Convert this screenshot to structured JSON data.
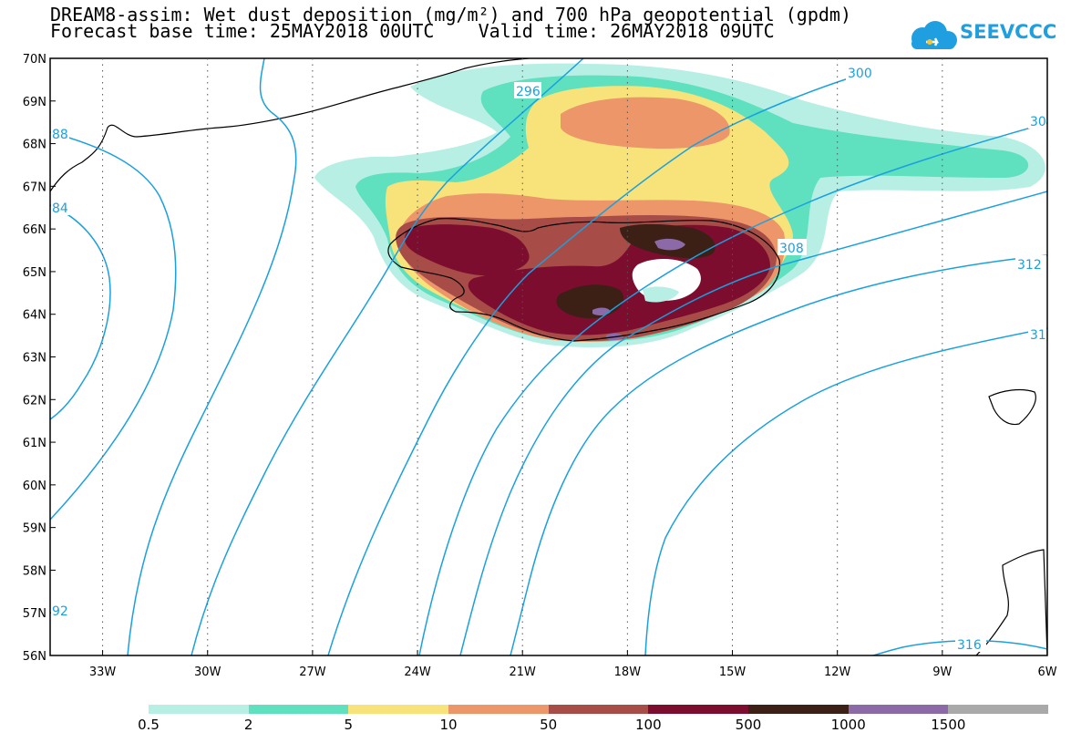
{
  "title": {
    "line1": "DREAM8-assim: Wet dust deposition (mg/m²) and 700 hPa geopotential (gpdm)",
    "line2": "Forecast base time: 25MAY2018 00UTC    Valid time: 26MAY2018 09UTC"
  },
  "logo": {
    "text": "SEEVCCC",
    "icon": "cloud-icon",
    "color": "#1f9fe0"
  },
  "map": {
    "projection": "lat-lon",
    "lon_range": [
      -34.5,
      -6
    ],
    "lat_range": [
      56,
      70
    ],
    "lat_labels": [
      "70N",
      "69N",
      "68N",
      "67N",
      "66N",
      "65N",
      "64N",
      "63N",
      "62N",
      "61N",
      "60N",
      "59N",
      "58N",
      "57N",
      "56N"
    ],
    "lon_labels": [
      "33W",
      "30W",
      "27W",
      "24W",
      "21W",
      "18W",
      "15W",
      "12W",
      "9W",
      "6W"
    ],
    "contour_labels": [
      "296",
      "300",
      "30",
      "88",
      "84",
      "308",
      "312",
      "31",
      "92",
      "316"
    ],
    "contour_color": "#1aa0e0"
  },
  "legend": {
    "colors": [
      "#b8efe4",
      "#5fe0be",
      "#f7e37a",
      "#ec9669",
      "#a84c48",
      "#7d0d2f",
      "#3c2016",
      "#8c6aa8",
      "#a9a9a9"
    ],
    "labels": [
      "0.5",
      "2",
      "5",
      "10",
      "50",
      "100",
      "500",
      "1000",
      "1500"
    ]
  }
}
